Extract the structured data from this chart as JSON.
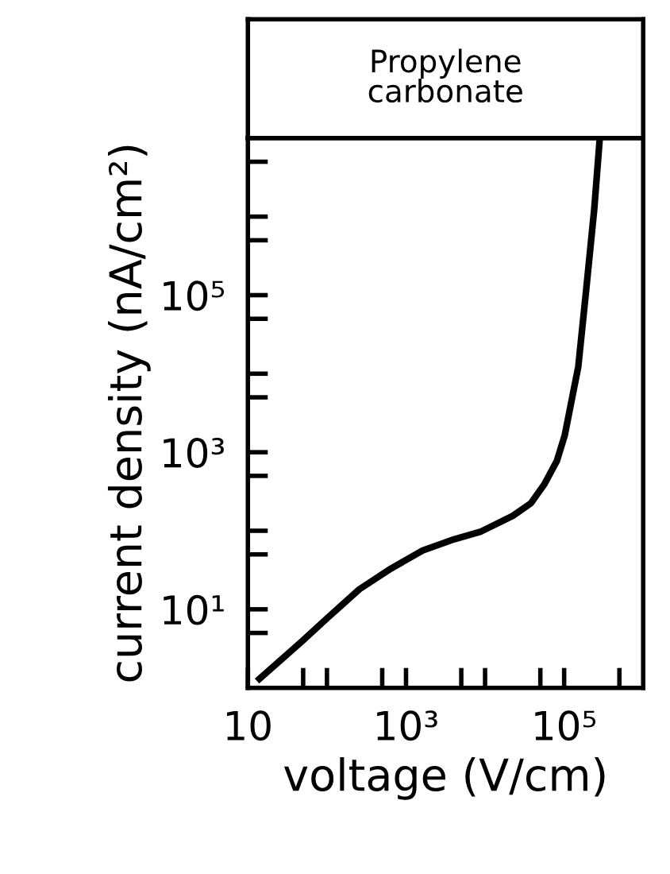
{
  "chart_data": {
    "type": "line",
    "title": "Propylene\ncarbonate",
    "xlabel": "voltage (V/cm)",
    "ylabel": "current density (nA/cm²)",
    "log": "xy",
    "x": [
      14,
      48,
      102,
      257,
      646,
      1620,
      4070,
      8900,
      22400,
      38000,
      56000,
      81000,
      102000,
      151000,
      191000,
      240000,
      282000
    ],
    "series": [
      {
        "color": "#000000",
        "values": [
          1.3,
          3.9,
          7.8,
          18,
          33,
          56,
          78,
          98,
          155,
          224,
          389,
          776,
          1660,
          12300,
          123000,
          1230000,
          9800000
        ]
      }
    ],
    "xlim": [
      10,
      1000000
    ],
    "ylim": [
      1,
      10000000
    ],
    "xticks": [
      {
        "value": 10,
        "label": "10"
      },
      {
        "value": 50,
        "label": null
      },
      {
        "value": 100,
        "label": null
      },
      {
        "value": 500,
        "label": null
      },
      {
        "value": 1000,
        "label": "10³"
      },
      {
        "value": 5000,
        "label": null
      },
      {
        "value": 10000,
        "label": null
      },
      {
        "value": 50000,
        "label": null
      },
      {
        "value": 100000,
        "label": "10⁵"
      },
      {
        "value": 500000,
        "label": null
      }
    ],
    "yticks": [
      {
        "value": 5,
        "label": null
      },
      {
        "value": 10,
        "label": "10¹"
      },
      {
        "value": 50,
        "label": null
      },
      {
        "value": 100,
        "label": null
      },
      {
        "value": 500,
        "label": null
      },
      {
        "value": 1000,
        "label": "10³"
      },
      {
        "value": 5000,
        "label": null
      },
      {
        "value": 10000,
        "label": null
      },
      {
        "value": 50000,
        "label": null
      },
      {
        "value": 100000,
        "label": "10⁵"
      },
      {
        "value": 500000,
        "label": null
      },
      {
        "value": 1000000,
        "label": null
      },
      {
        "value": 5000000,
        "label": null
      }
    ],
    "grid": false,
    "legend": false,
    "marker": "none",
    "line_style": "solid"
  }
}
